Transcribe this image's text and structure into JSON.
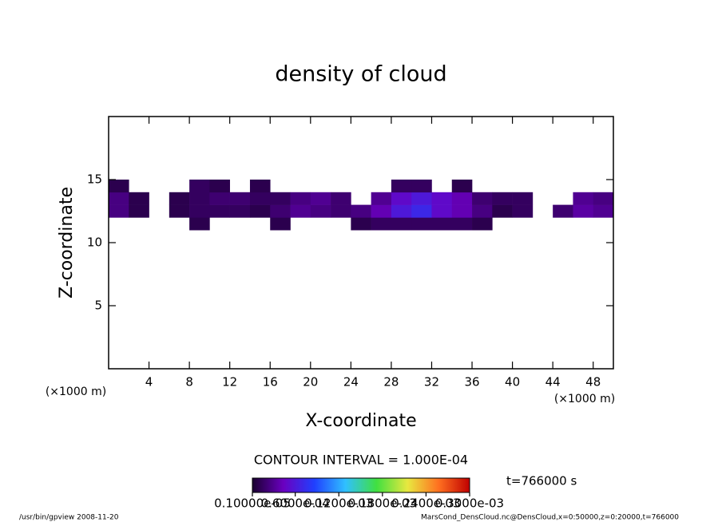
{
  "chart_data": {
    "type": "contour",
    "title": "density of cloud",
    "xlabel": "X-coordinate",
    "ylabel": "Z-coordinate",
    "x_unit": "(×1000 m)",
    "y_unit": "(×1000 m)",
    "xlim": [
      0,
      50
    ],
    "ylim": [
      0,
      20
    ],
    "xticks": [
      4,
      8,
      12,
      16,
      20,
      24,
      28,
      32,
      36,
      40,
      44,
      48
    ],
    "yticks": [
      5,
      10,
      15
    ],
    "x": [
      1,
      3,
      5,
      7,
      9,
      11,
      13,
      15,
      17,
      19,
      21,
      23,
      25,
      27,
      29,
      31,
      33,
      35,
      37,
      39,
      41,
      43,
      45,
      47,
      49
    ],
    "y": [
      11.5,
      12.5,
      13.5,
      14.5
    ],
    "z": [
      [
        null,
        null,
        null,
        null,
        1e-05,
        null,
        null,
        null,
        1e-05,
        null,
        null,
        null,
        1e-05,
        1.5e-05,
        1.5e-05,
        1.5e-05,
        1.5e-05,
        1.5e-05,
        1e-05,
        null,
        null,
        null,
        null,
        null,
        null
      ],
      [
        2.5e-05,
        1e-05,
        null,
        1e-05,
        1.5e-05,
        1.5e-05,
        1.5e-05,
        1e-05,
        2e-05,
        3e-05,
        2.5e-05,
        2e-05,
        2.5e-05,
        4e-05,
        6e-05,
        7e-05,
        5e-05,
        4e-05,
        2.5e-05,
        1e-05,
        1.5e-05,
        null,
        2e-05,
        3.5e-05,
        3e-05
      ],
      [
        2.5e-05,
        1e-05,
        null,
        1e-05,
        1.5e-05,
        2e-05,
        2e-05,
        1.5e-05,
        1.5e-05,
        2.5e-05,
        3e-05,
        2e-05,
        null,
        3e-05,
        5e-05,
        6e-05,
        5e-05,
        4e-05,
        2e-05,
        1.5e-05,
        1.5e-05,
        null,
        null,
        3e-05,
        2.5e-05
      ],
      [
        1e-05,
        null,
        null,
        null,
        1.5e-05,
        1e-05,
        null,
        1e-05,
        null,
        null,
        null,
        null,
        null,
        null,
        1.5e-05,
        1.5e-05,
        null,
        1e-05,
        null,
        null,
        null,
        null,
        null,
        null,
        null
      ]
    ],
    "colormap": [
      "#1a0030",
      "#6a00c0",
      "#2040ff",
      "#30c0ff",
      "#40e040",
      "#e8e840",
      "#ff7020",
      "#c00000"
    ],
    "clim": [
      1e-06,
      0.0003
    ],
    "colorbar_ticks": [
      {
        "value": 1e-06,
        "label": "0.10000e-05"
      },
      {
        "value": 6e-05,
        "label": "0.6000e-04"
      },
      {
        "value": 0.00012,
        "label": "0.1200e-03"
      },
      {
        "value": 0.00018,
        "label": "0.1800e-03"
      },
      {
        "value": 0.00024,
        "label": "0.2400e-03"
      },
      {
        "value": 0.0003,
        "label": "0.3000e-03"
      }
    ],
    "contour_interval": "CONTOUR INTERVAL = 1.000E-04",
    "time_label": "t=766000 s",
    "footer_left": "/usr/bin/gpview  2008-11-20",
    "footer_right": "MarsCond_DensCloud.nc@DensCloud,x=0:50000,z=0:20000,t=766000"
  }
}
